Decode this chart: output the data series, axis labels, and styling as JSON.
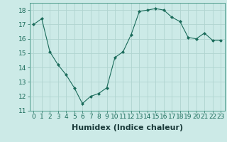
{
  "x": [
    0,
    1,
    2,
    3,
    4,
    5,
    6,
    7,
    8,
    9,
    10,
    11,
    12,
    13,
    14,
    15,
    16,
    17,
    18,
    19,
    20,
    21,
    22,
    23
  ],
  "y": [
    17.0,
    17.4,
    15.1,
    14.2,
    13.5,
    12.6,
    11.5,
    12.0,
    12.2,
    12.6,
    14.7,
    15.1,
    16.3,
    17.9,
    18.0,
    18.1,
    18.0,
    17.5,
    17.2,
    16.1,
    16.0,
    16.4,
    15.9,
    15.9
  ],
  "xlabel": "Humidex (Indice chaleur)",
  "ylim": [
    11,
    18.5
  ],
  "xlim": [
    -0.5,
    23.5
  ],
  "yticks": [
    11,
    12,
    13,
    14,
    15,
    16,
    17,
    18
  ],
  "xticks": [
    0,
    1,
    2,
    3,
    4,
    5,
    6,
    7,
    8,
    9,
    10,
    11,
    12,
    13,
    14,
    15,
    16,
    17,
    18,
    19,
    20,
    21,
    22,
    23
  ],
  "line_color": "#1a6b5a",
  "marker": "D",
  "marker_size": 2.0,
  "bg_color": "#cceae7",
  "grid_color": "#b0d4d0",
  "tick_label_fontsize": 6.5,
  "xlabel_fontsize": 8.0
}
